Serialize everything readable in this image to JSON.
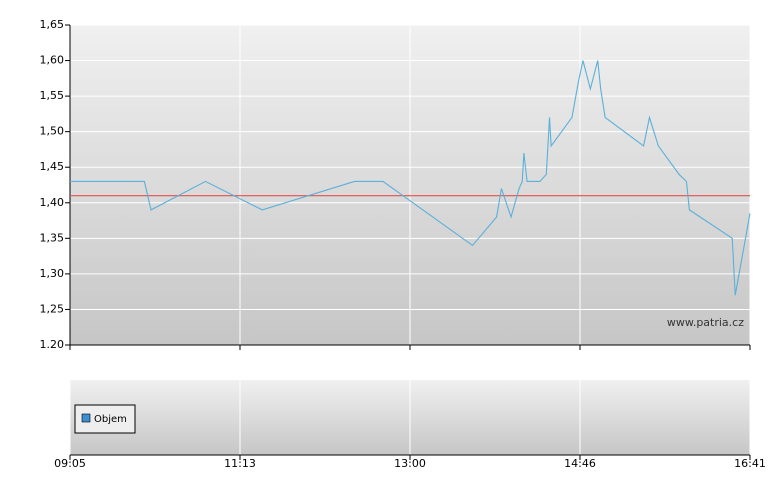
{
  "chart_data": [
    {
      "type": "line",
      "x": [
        "09:05",
        "10:01",
        "10:06",
        "10:47",
        "11:27",
        "12:25",
        "12:43",
        "13:39",
        "13:54",
        "13:57",
        "14:03",
        "14:08",
        "14:10",
        "14:11",
        "14:13",
        "14:21",
        "14:25",
        "14:27",
        "14:28",
        "14:41",
        "14:45",
        "14:48",
        "14:53",
        "14:58",
        "15:00",
        "15:03",
        "15:29",
        "15:33",
        "15:39",
        "15:53",
        "15:58",
        "16:00",
        "16:29",
        "16:31",
        "16:41"
      ],
      "series": [
        {
          "color": "#5ab0d8",
          "values": [
            1.43,
            1.43,
            1.39,
            1.43,
            1.39,
            1.43,
            1.43,
            1.34,
            1.38,
            1.42,
            1.38,
            1.42,
            1.43,
            1.47,
            1.43,
            1.43,
            1.44,
            1.52,
            1.48,
            1.52,
            1.57,
            1.6,
            1.56,
            1.6,
            1.56,
            1.52,
            1.48,
            1.52,
            1.48,
            1.44,
            1.43,
            1.39,
            1.35,
            1.27,
            1.385
          ]
        }
      ],
      "ylim": [
        1.2,
        1.65
      ],
      "yticks": [
        {
          "value": 1.2,
          "label": "1.20"
        },
        {
          "value": 1.25,
          "label": "1,25"
        },
        {
          "value": 1.3,
          "label": "1,30"
        },
        {
          "value": 1.35,
          "label": "1,35"
        },
        {
          "value": 1.4,
          "label": "1,40"
        },
        {
          "value": 1.45,
          "label": "1,45"
        },
        {
          "value": 1.5,
          "label": "1,50"
        },
        {
          "value": 1.55,
          "label": "1,55"
        },
        {
          "value": 1.6,
          "label": "1,60"
        },
        {
          "value": 1.65,
          "label": "1,65"
        }
      ],
      "xlim": [
        "09:05",
        "16:41"
      ],
      "xticks": [
        "09:05",
        "11:13",
        "13:00",
        "14:46",
        "16:41"
      ],
      "reference_line": {
        "value": 1.41,
        "color": "#e05050"
      },
      "watermark": "www.patria.cz",
      "grid": true
    },
    {
      "type": "bar",
      "series": [
        {
          "name": "Objem",
          "color": "#3c8fd0"
        }
      ],
      "grid": true
    }
  ]
}
